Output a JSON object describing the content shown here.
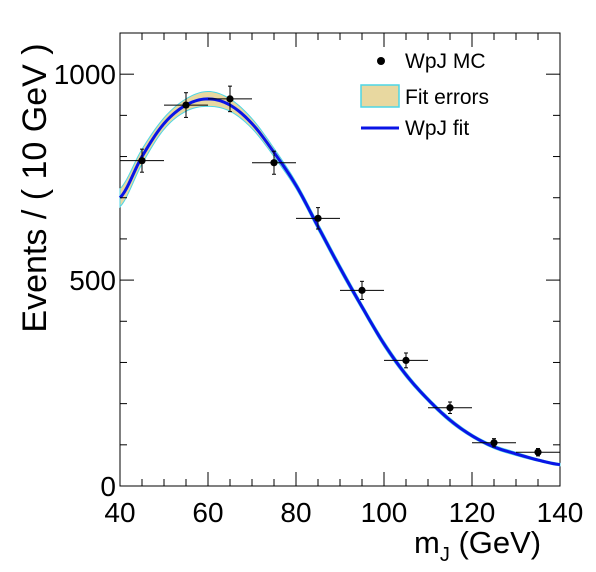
{
  "chart_data": {
    "type": "scatter",
    "xlabel_main": "m",
    "xlabel_sub": "J",
    "xlabel_unit": " (GeV)",
    "ylabel": "Events / ( 10 GeV )",
    "xlim": [
      40,
      140
    ],
    "ylim": [
      0,
      1100
    ],
    "xticks": [
      40,
      60,
      80,
      100,
      120,
      140
    ],
    "yticks": [
      0,
      500,
      1000
    ],
    "grid": false,
    "legend_position": "top-right",
    "legend": {
      "data_label": "WpJ MC",
      "band_label": "Fit errors",
      "fit_label": "WpJ fit"
    },
    "series": [
      {
        "name": "WpJ MC",
        "type": "points",
        "x": [
          45,
          55,
          65,
          75,
          85,
          95,
          105,
          115,
          125,
          135
        ],
        "y": [
          790,
          925,
          940,
          785,
          650,
          475,
          305,
          190,
          105,
          82
        ],
        "yerr": [
          28,
          30,
          31,
          28,
          26,
          22,
          18,
          14,
          10,
          9
        ],
        "xerr": 5
      },
      {
        "name": "WpJ fit",
        "type": "line",
        "x": [
          40,
          45,
          50,
          55,
          60,
          65,
          70,
          75,
          80,
          85,
          90,
          95,
          100,
          105,
          110,
          115,
          120,
          125,
          130,
          135,
          140
        ],
        "y": [
          700,
          800,
          880,
          925,
          940,
          925,
          880,
          810,
          730,
          630,
          530,
          435,
          345,
          270,
          210,
          160,
          122,
          95,
          78,
          63,
          52
        ]
      },
      {
        "name": "Fit errors",
        "type": "band",
        "halfwidth": [
          22,
          18,
          14,
          15,
          18,
          15,
          12,
          10,
          8,
          8,
          8,
          7,
          7,
          6,
          5,
          5,
          4,
          4,
          4,
          3,
          3
        ]
      }
    ],
    "colors": {
      "fit_line": "#0a14e6",
      "band_fill": "#e8d8a0",
      "band_edge": "#4dd6e6",
      "points": "#000000"
    }
  }
}
